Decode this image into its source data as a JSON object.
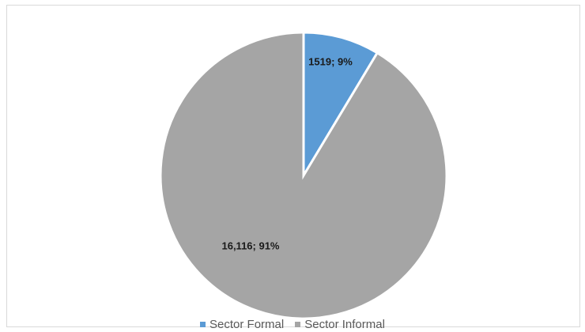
{
  "chart_data": {
    "type": "pie",
    "title": "",
    "slices": [
      {
        "name": "Sector Formal",
        "value": 1519,
        "percent": 9,
        "label": "1519; 9%",
        "color": "#5b9bd5"
      },
      {
        "name": "Sector Informal",
        "value": 16116,
        "percent": 91,
        "label": "16,116; 91%",
        "color": "#a5a5a5"
      }
    ],
    "legend_position": "bottom"
  }
}
